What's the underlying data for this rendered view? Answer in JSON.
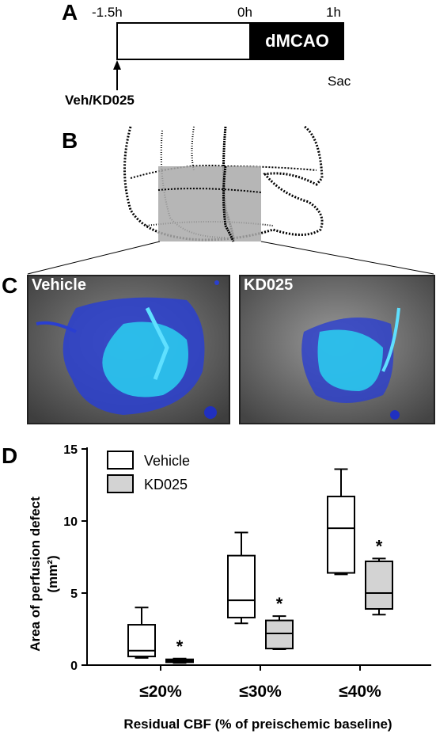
{
  "panelA": {
    "letter": "A",
    "t_start": "-1.5h",
    "t_zero": "0h",
    "t_end": "1h",
    "occlusion_label": "dMCAO",
    "sacrifice_label": "Sac",
    "treatment_label": "Veh/KD025"
  },
  "panelB": {
    "letter": "B"
  },
  "panelC": {
    "letter": "C",
    "left_label": "Vehicle",
    "right_label": "KD025"
  },
  "panelD": {
    "letter": "D",
    "significance_marker": "*"
  },
  "chart_data": {
    "type": "box",
    "categories": [
      "≤20%",
      "≤30%",
      "≤40%"
    ],
    "ylabel": "Area of perfusion defect (mm²)",
    "xlabel": "Residual CBF (% of preischemic baseline)",
    "ylim": [
      0,
      15
    ],
    "yticks": [
      "0",
      "5",
      "10",
      "15"
    ],
    "legend_position": "top-left",
    "series": [
      {
        "name": "Vehicle",
        "color": "#ffffff",
        "boxes": [
          {
            "min": 0.5,
            "q1": 0.6,
            "median": 1.0,
            "q3": 2.8,
            "max": 4.0
          },
          {
            "min": 2.9,
            "q1": 3.3,
            "median": 4.5,
            "q3": 7.6,
            "max": 9.2
          },
          {
            "min": 6.3,
            "q1": 6.4,
            "median": 9.5,
            "q3": 11.7,
            "max": 13.6
          }
        ]
      },
      {
        "name": "KD025",
        "color": "#d3d3d3",
        "boxes": [
          {
            "min": 0.15,
            "q1": 0.2,
            "median": 0.3,
            "q3": 0.4,
            "max": 0.45
          },
          {
            "min": 1.1,
            "q1": 1.15,
            "median": 2.2,
            "q3": 3.1,
            "max": 3.4
          },
          {
            "min": 3.5,
            "q1": 3.9,
            "median": 5.0,
            "q3": 7.2,
            "max": 7.4
          }
        ]
      }
    ],
    "significant": [
      true,
      true,
      true
    ]
  }
}
